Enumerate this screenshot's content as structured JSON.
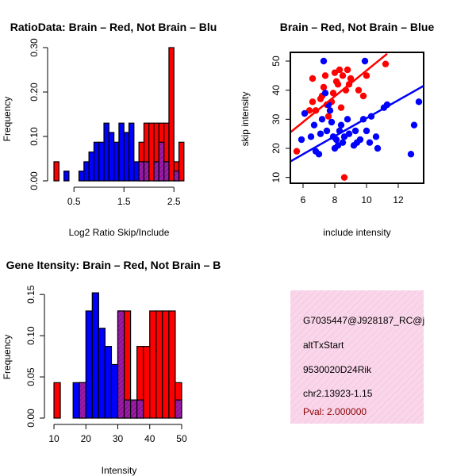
{
  "colors": {
    "brain": "#ff0000",
    "not_brain": "#0000ff",
    "overlap": "#9a1ca8",
    "info_bg": "#f9d6ea",
    "pval": "#8b0000"
  },
  "chart_data": [
    {
      "type": "bar",
      "title": "RatioData: Brain – Red, Not Brain – Blu",
      "xlabel": "Log2 Ratio Skip/Include",
      "ylabel": "Frequency",
      "xlim": [
        0.1,
        2.75
      ],
      "ylim": [
        0,
        0.3
      ],
      "xticks": [
        0.5,
        1.5,
        2.5
      ],
      "xtick_labels": [
        "0.5",
        "1.5",
        "2.5"
      ],
      "yticks": [
        0.0,
        0.1,
        0.2,
        0.3
      ],
      "ytick_labels": [
        "0.00",
        "0.10",
        "0.20",
        "0.30"
      ],
      "bin_width": 0.1,
      "series": [
        {
          "name": "Brain",
          "bins": [
            {
              "x0": 0.1,
              "v": 0.043
            },
            {
              "x0": 1.8,
              "v": 0.087
            },
            {
              "x0": 1.9,
              "v": 0.13
            },
            {
              "x0": 2.0,
              "v": 0.13
            },
            {
              "x0": 2.1,
              "v": 0.13
            },
            {
              "x0": 2.2,
              "v": 0.13
            },
            {
              "x0": 2.3,
              "v": 0.13
            },
            {
              "x0": 2.4,
              "v": 0.3
            },
            {
              "x0": 2.5,
              "v": 0.043
            },
            {
              "x0": 2.6,
              "v": 0.087
            }
          ]
        },
        {
          "name": "Not Brain",
          "bins": [
            {
              "x0": 0.3,
              "v": 0.022
            },
            {
              "x0": 0.6,
              "v": 0.022
            },
            {
              "x0": 0.7,
              "v": 0.043
            },
            {
              "x0": 0.8,
              "v": 0.065
            },
            {
              "x0": 0.9,
              "v": 0.087
            },
            {
              "x0": 1.0,
              "v": 0.087
            },
            {
              "x0": 1.1,
              "v": 0.13
            },
            {
              "x0": 1.2,
              "v": 0.109
            },
            {
              "x0": 1.3,
              "v": 0.087
            },
            {
              "x0": 1.4,
              "v": 0.13
            },
            {
              "x0": 1.5,
              "v": 0.109
            },
            {
              "x0": 1.6,
              "v": 0.13
            },
            {
              "x0": 1.7,
              "v": 0.043
            },
            {
              "x0": 1.8,
              "v": 0.043
            },
            {
              "x0": 1.9,
              "v": 0.043
            },
            {
              "x0": 2.1,
              "v": 0.043
            },
            {
              "x0": 2.2,
              "v": 0.087
            },
            {
              "x0": 2.3,
              "v": 0.043
            },
            {
              "x0": 2.5,
              "v": 0.022
            }
          ]
        }
      ]
    },
    {
      "type": "scatter",
      "title": "Brain – Red, Not Brain – Blue",
      "xlabel": "include intensity",
      "ylabel": "skip intensity",
      "xlim": [
        5.2,
        13.6
      ],
      "ylim": [
        8,
        53
      ],
      "xticks": [
        6,
        8,
        10,
        12
      ],
      "yticks": [
        10,
        20,
        30,
        40,
        50
      ],
      "series": [
        {
          "name": "Brain",
          "points": [
            [
              5.6,
              19
            ],
            [
              6.4,
              33
            ],
            [
              6.6,
              44
            ],
            [
              6.6,
              36
            ],
            [
              6.8,
              33
            ],
            [
              7.1,
              37
            ],
            [
              7.2,
              38
            ],
            [
              7.3,
              41
            ],
            [
              7.4,
              45
            ],
            [
              7.5,
              35
            ],
            [
              7.6,
              31
            ],
            [
              7.8,
              36
            ],
            [
              7.9,
              39
            ],
            [
              8.0,
              46
            ],
            [
              8.1,
              43
            ],
            [
              8.2,
              42
            ],
            [
              8.3,
              47
            ],
            [
              8.4,
              34
            ],
            [
              8.5,
              45
            ],
            [
              8.6,
              10
            ],
            [
              8.7,
              40
            ],
            [
              8.8,
              47
            ],
            [
              8.9,
              42
            ],
            [
              9.0,
              44
            ],
            [
              9.5,
              40
            ],
            [
              9.8,
              38
            ],
            [
              10.0,
              45
            ],
            [
              11.2,
              49
            ]
          ]
        },
        {
          "name": "Not Brain",
          "points": [
            [
              5.9,
              23
            ],
            [
              6.1,
              32
            ],
            [
              6.5,
              24
            ],
            [
              6.7,
              28
            ],
            [
              6.8,
              19
            ],
            [
              7.0,
              18
            ],
            [
              7.1,
              25
            ],
            [
              7.2,
              30
            ],
            [
              7.3,
              50
            ],
            [
              7.4,
              39
            ],
            [
              7.5,
              26
            ],
            [
              7.6,
              35
            ],
            [
              7.7,
              33
            ],
            [
              7.8,
              29
            ],
            [
              7.9,
              24
            ],
            [
              8.0,
              20
            ],
            [
              8.1,
              23
            ],
            [
              8.2,
              21
            ],
            [
              8.3,
              26
            ],
            [
              8.4,
              28
            ],
            [
              8.5,
              22
            ],
            [
              8.6,
              24
            ],
            [
              8.8,
              30
            ],
            [
              8.9,
              25
            ],
            [
              9.2,
              21
            ],
            [
              9.3,
              26
            ],
            [
              9.4,
              22
            ],
            [
              9.6,
              23
            ],
            [
              9.8,
              30
            ],
            [
              10.0,
              26
            ],
            [
              10.2,
              22
            ],
            [
              10.3,
              31
            ],
            [
              10.6,
              24
            ],
            [
              10.7,
              20
            ],
            [
              11.1,
              34
            ],
            [
              11.3,
              35
            ],
            [
              12.8,
              18
            ],
            [
              13.0,
              28
            ],
            [
              13.3,
              36
            ],
            [
              9.9,
              50
            ]
          ]
        }
      ],
      "trendlines": [
        {
          "name": "Brain",
          "from": [
            5.2,
            25.5
          ],
          "to": [
            11.3,
            52.5
          ]
        },
        {
          "name": "Not Brain",
          "from": [
            5.2,
            15.5
          ],
          "to": [
            13.6,
            41.5
          ]
        }
      ]
    },
    {
      "type": "bar",
      "title": "Gene Itensity: Brain – Red, Not Brain – B",
      "xlabel": "Intensity",
      "ylabel": "Frequency",
      "xlim": [
        9,
        51
      ],
      "ylim": [
        0,
        0.155
      ],
      "xticks": [
        10,
        20,
        30,
        40,
        50
      ],
      "xtick_labels": [
        "10",
        "20",
        "30",
        "40",
        "50"
      ],
      "yticks": [
        0.0,
        0.05,
        0.1,
        0.15
      ],
      "ytick_labels": [
        "0.00",
        "0.05",
        "0.10",
        "0.15"
      ],
      "bin_width": 2,
      "series": [
        {
          "name": "Brain",
          "bins": [
            {
              "x0": 10,
              "v": 0.043
            },
            {
              "x0": 18,
              "v": 0.043
            },
            {
              "x0": 30,
              "v": 0.13
            },
            {
              "x0": 32,
              "v": 0.13
            },
            {
              "x0": 34,
              "v": 0.022
            },
            {
              "x0": 36,
              "v": 0.087
            },
            {
              "x0": 38,
              "v": 0.087
            },
            {
              "x0": 40,
              "v": 0.13
            },
            {
              "x0": 42,
              "v": 0.13
            },
            {
              "x0": 44,
              "v": 0.13
            },
            {
              "x0": 46,
              "v": 0.13
            },
            {
              "x0": 48,
              "v": 0.043
            }
          ]
        },
        {
          "name": "Not Brain",
          "bins": [
            {
              "x0": 16,
              "v": 0.043
            },
            {
              "x0": 18,
              "v": 0.043
            },
            {
              "x0": 20,
              "v": 0.13
            },
            {
              "x0": 22,
              "v": 0.152
            },
            {
              "x0": 24,
              "v": 0.109
            },
            {
              "x0": 26,
              "v": 0.087
            },
            {
              "x0": 28,
              "v": 0.065
            },
            {
              "x0": 30,
              "v": 0.13
            },
            {
              "x0": 32,
              "v": 0.022
            },
            {
              "x0": 34,
              "v": 0.022
            },
            {
              "x0": 36,
              "v": 0.022
            },
            {
              "x0": 48,
              "v": 0.022
            }
          ]
        }
      ]
    }
  ],
  "info": {
    "line1": "G7035447@J928187_RC@j",
    "line2": "altTxStart",
    "line3": "9530020D24Rik",
    "line4": "chr2.13923-1.15",
    "pval": "Pval: 2.000000"
  }
}
